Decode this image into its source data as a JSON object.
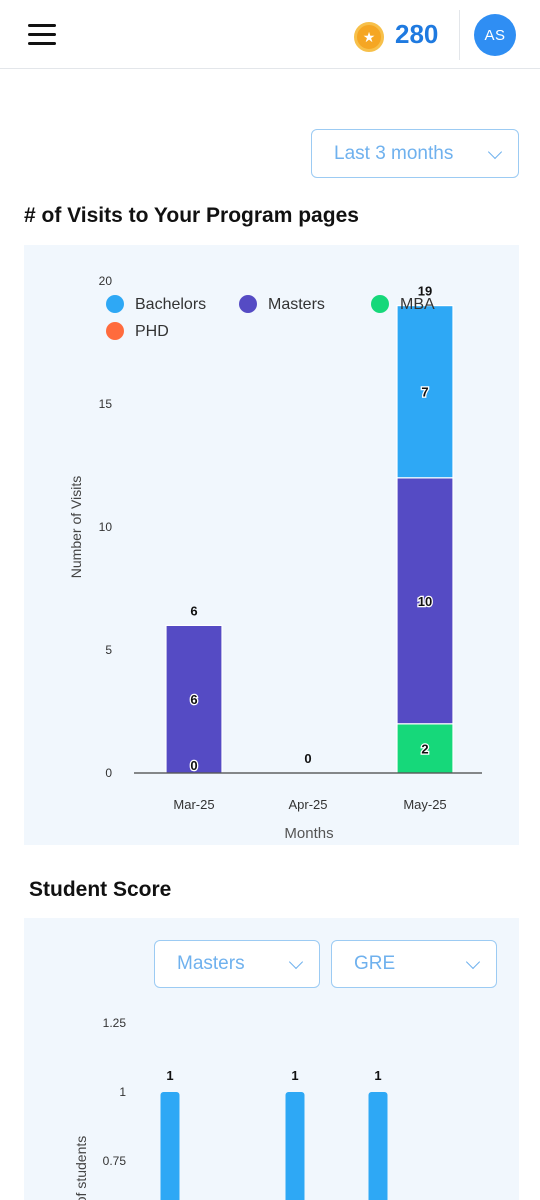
{
  "header": {
    "menu_icon": "hamburger-menu-icon",
    "coin_icon": "star-coin-icon",
    "coins": "280",
    "avatar_initials": "AS"
  },
  "visits": {
    "range_select": "Last 3 months",
    "title": "# of Visits to Your Program pages"
  },
  "score": {
    "title": "Student Score",
    "program_select": "Masters",
    "test_select": "GRE"
  },
  "chart_data": [
    {
      "type": "bar",
      "stacked": true,
      "categories": [
        "Mar-25",
        "Apr-25",
        "May-25"
      ],
      "series": [
        {
          "name": "MBA",
          "color": "#16d87a",
          "values": [
            0,
            0,
            2
          ]
        },
        {
          "name": "Masters",
          "color": "#554bc4",
          "values": [
            6,
            0,
            10
          ]
        },
        {
          "name": "Bachelors",
          "color": "#2ea8f5",
          "values": [
            0,
            0,
            7
          ]
        },
        {
          "name": "PHD",
          "color": "#ff6b3d",
          "values": [
            0,
            0,
            0
          ]
        }
      ],
      "segment_labels": [
        [
          "0",
          "6"
        ],
        [],
        [
          "2",
          "10",
          "7"
        ]
      ],
      "totals": [
        "6",
        "0",
        "19"
      ],
      "legend_order": [
        "Bachelors",
        "Masters",
        "MBA",
        "PHD"
      ],
      "legend_position": "top-left",
      "xlabel": "Months",
      "ylabel": "Number of Visits",
      "ylim": [
        0,
        20
      ],
      "yticks": [
        "0",
        "5",
        "10",
        "15",
        "20"
      ]
    },
    {
      "type": "bar",
      "categories": [
        "",
        "",
        ""
      ],
      "series": [
        {
          "color": "#2ea8f5",
          "values": [
            1,
            1,
            1
          ]
        }
      ],
      "value_labels": [
        "1",
        "1",
        "1"
      ],
      "ylabel": "of students",
      "ylim": [
        0,
        1.25
      ],
      "yticks": [
        "0.75",
        "1",
        "1.25"
      ]
    }
  ]
}
